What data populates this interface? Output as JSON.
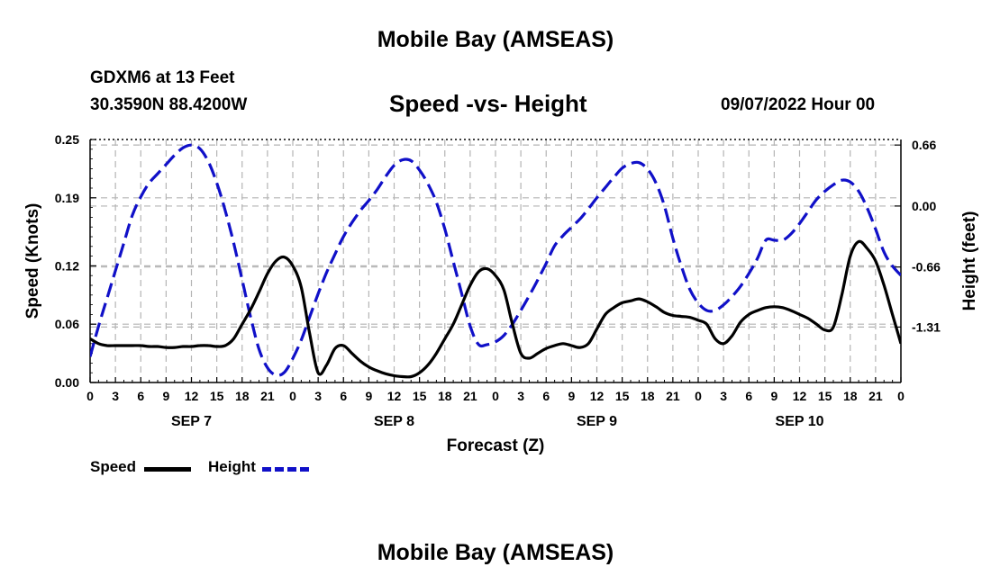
{
  "header": {
    "title": "Mobile Bay (AMSEAS)",
    "station": "GDXM6 at 13 Feet",
    "coords": "30.3590N  88.4200W",
    "subtitle": "Speed -vs- Height",
    "date": "09/07/2022 Hour 00"
  },
  "footer": {
    "title": "Mobile Bay (AMSEAS)"
  },
  "legend": {
    "speed_label": "Speed",
    "height_label": "Height",
    "speed_color": "#000000",
    "height_color": "#1010c8"
  },
  "chart_data": {
    "type": "line",
    "title": "Speed -vs- Height",
    "xlabel": "Forecast (Z)",
    "ylabel": "Speed (Knots)",
    "y2label": "Height (feet)",
    "x_range_hours": [
      0,
      96
    ],
    "x_tick_labels": [
      "0",
      "3",
      "6",
      "9",
      "12",
      "15",
      "18",
      "21",
      "0",
      "3",
      "6",
      "9",
      "12",
      "15",
      "18",
      "21",
      "0",
      "3",
      "6",
      "9",
      "12",
      "15",
      "18",
      "21",
      "0",
      "3",
      "6",
      "9",
      "12",
      "15",
      "18",
      "21",
      "0"
    ],
    "day_labels": [
      {
        "text": "SEP 7",
        "hour": 12
      },
      {
        "text": "SEP 8",
        "hour": 36
      },
      {
        "text": "SEP 9",
        "hour": 60
      },
      {
        "text": "SEP 10",
        "hour": 84
      }
    ],
    "ylim": [
      0,
      0.25
    ],
    "y_ticks": [
      0.0,
      0.06,
      0.12,
      0.19,
      0.25
    ],
    "y_tick_labels": [
      "0.00",
      "0.06",
      "0.12",
      "0.19",
      "0.25"
    ],
    "y2lim": [
      -1.91,
      0.72
    ],
    "y2_ticks": [
      0.66,
      0.0,
      -0.66,
      -1.31
    ],
    "y2_tick_labels": [
      "0.66",
      "0.00",
      "-0.66",
      "-1.31"
    ],
    "grid": true,
    "series": [
      {
        "name": "Speed",
        "axis": "left",
        "style": "solid",
        "x": [
          0,
          1,
          2,
          3,
          4,
          5,
          6,
          7,
          8,
          9,
          10,
          11,
          12,
          13,
          14,
          15,
          16,
          17,
          18,
          19,
          20,
          21,
          22,
          23,
          24,
          25,
          26,
          27,
          28,
          29,
          30,
          31,
          32,
          33,
          34,
          35,
          36,
          37,
          38,
          39,
          40,
          41,
          42,
          43,
          44,
          45,
          46,
          47,
          48,
          49,
          50,
          51,
          52,
          53,
          54,
          55,
          56,
          57,
          58,
          59,
          60,
          61,
          62,
          63,
          64,
          65,
          66,
          67,
          68,
          69,
          70,
          71,
          72,
          73,
          74,
          75,
          76,
          77,
          78,
          79,
          80,
          81,
          82,
          83,
          84,
          85,
          86,
          87,
          88,
          89,
          90,
          91,
          92,
          93,
          94,
          95,
          96
        ],
        "values": [
          0.045,
          0.04,
          0.038,
          0.038,
          0.038,
          0.038,
          0.038,
          0.037,
          0.037,
          0.036,
          0.036,
          0.037,
          0.037,
          0.038,
          0.038,
          0.037,
          0.038,
          0.045,
          0.06,
          0.075,
          0.093,
          0.112,
          0.125,
          0.129,
          0.12,
          0.098,
          0.05,
          0.01,
          0.018,
          0.035,
          0.038,
          0.03,
          0.022,
          0.016,
          0.012,
          0.009,
          0.007,
          0.006,
          0.006,
          0.01,
          0.018,
          0.03,
          0.045,
          0.06,
          0.08,
          0.1,
          0.114,
          0.117,
          0.11,
          0.095,
          0.06,
          0.03,
          0.025,
          0.03,
          0.035,
          0.038,
          0.04,
          0.038,
          0.036,
          0.04,
          0.055,
          0.07,
          0.077,
          0.082,
          0.084,
          0.086,
          0.083,
          0.078,
          0.072,
          0.069,
          0.068,
          0.067,
          0.064,
          0.06,
          0.045,
          0.04,
          0.048,
          0.062,
          0.07,
          0.074,
          0.077,
          0.078,
          0.077,
          0.074,
          0.07,
          0.066,
          0.06,
          0.054,
          0.057,
          0.09,
          0.13,
          0.145,
          0.138,
          0.125,
          0.1,
          0.07,
          0.04
        ]
      },
      {
        "name": "Height",
        "axis": "right",
        "style": "dashed",
        "x": [
          0,
          1,
          2,
          3,
          4,
          5,
          6,
          7,
          8,
          9,
          10,
          11,
          12,
          13,
          14,
          15,
          16,
          17,
          18,
          19,
          20,
          21,
          22,
          23,
          24,
          25,
          26,
          27,
          28,
          29,
          30,
          31,
          32,
          33,
          34,
          35,
          36,
          37,
          38,
          39,
          40,
          41,
          42,
          43,
          44,
          45,
          46,
          47,
          48,
          49,
          50,
          51,
          52,
          53,
          54,
          55,
          56,
          57,
          58,
          59,
          60,
          61,
          62,
          63,
          64,
          65,
          66,
          67,
          68,
          69,
          70,
          71,
          72,
          73,
          74,
          75,
          76,
          77,
          78,
          79,
          80,
          81,
          82,
          83,
          84,
          85,
          86,
          87,
          88,
          89,
          90,
          91,
          92,
          93,
          94,
          95,
          96
        ],
        "values": [
          -1.63,
          -1.3,
          -1.0,
          -0.7,
          -0.4,
          -0.1,
          0.1,
          0.25,
          0.35,
          0.45,
          0.55,
          0.63,
          0.66,
          0.62,
          0.48,
          0.25,
          -0.05,
          -0.4,
          -0.8,
          -1.2,
          -1.55,
          -1.75,
          -1.83,
          -1.8,
          -1.65,
          -1.45,
          -1.2,
          -0.95,
          -0.72,
          -0.52,
          -0.33,
          -0.18,
          -0.05,
          0.06,
          0.18,
          0.32,
          0.44,
          0.5,
          0.49,
          0.39,
          0.24,
          0.04,
          -0.25,
          -0.6,
          -0.95,
          -1.3,
          -1.5,
          -1.5,
          -1.47,
          -1.4,
          -1.28,
          -1.13,
          -0.97,
          -0.8,
          -0.62,
          -0.43,
          -0.32,
          -0.23,
          -0.14,
          -0.03,
          0.09,
          0.2,
          0.31,
          0.41,
          0.46,
          0.47,
          0.4,
          0.25,
          0.0,
          -0.35,
          -0.65,
          -0.9,
          -1.05,
          -1.13,
          -1.13,
          -1.07,
          -0.98,
          -0.87,
          -0.73,
          -0.57,
          -0.37,
          -0.37,
          -0.37,
          -0.3,
          -0.19,
          -0.06,
          0.07,
          0.16,
          0.23,
          0.28,
          0.26,
          0.16,
          -0.02,
          -0.25,
          -0.5,
          -0.65,
          -0.75
        ]
      }
    ]
  }
}
